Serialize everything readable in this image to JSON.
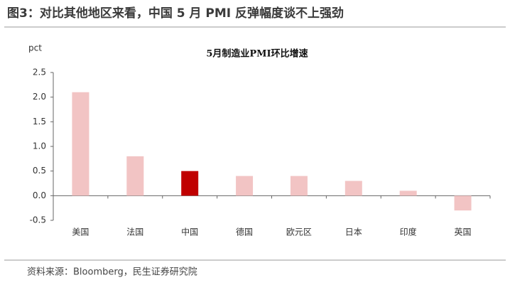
{
  "header": {
    "title": "图3：对比其他地区来看，中国 5 月 PMI 反弹幅度谈不上强劲"
  },
  "chart_data": {
    "type": "bar",
    "title": "5月制造业PMI环比增速",
    "y_label": "pct",
    "categories": [
      "美国",
      "法国",
      "中国",
      "德国",
      "欧元区",
      "日本",
      "印度",
      "英国"
    ],
    "values": [
      2.1,
      0.8,
      0.5,
      0.4,
      0.4,
      0.3,
      0.1,
      -0.3
    ],
    "colors": [
      "#f2c4c4",
      "#f2c4c4",
      "#c00000",
      "#f2c4c4",
      "#f2c4c4",
      "#f2c4c4",
      "#f2c4c4",
      "#f2c4c4"
    ],
    "ylim": [
      -0.5,
      2.5
    ],
    "yticks": [
      -0.5,
      {
        "value": 0,
        "label": "0.0"
      },
      0.5,
      {
        "value": 1,
        "label": "1.0"
      },
      1.5,
      {
        "value": 2,
        "label": "2.0"
      },
      2.5
    ],
    "grid": false
  },
  "source": "资料来源：Bloomberg，民生证券研究院"
}
